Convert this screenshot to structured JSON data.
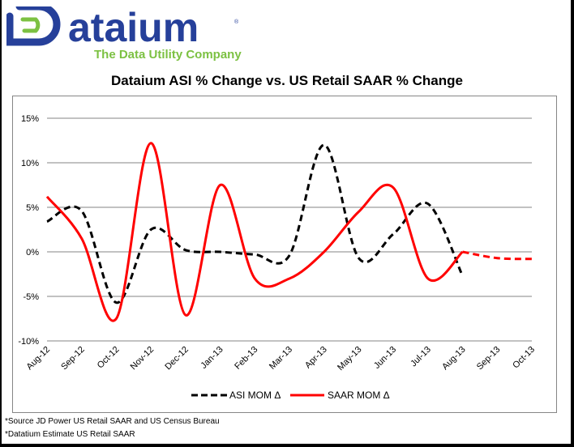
{
  "logo": {
    "brand": "ataium",
    "registered": "®",
    "tagline": "The Data Utility Company",
    "colors": {
      "blue": "#26409a",
      "green": "#7cc142"
    }
  },
  "footnotes": [
    "*Source JD Power US Retail SAAR and US Census Bureau",
    "*Datatium Estimate US Retail SAAR"
  ],
  "chart_data": {
    "type": "line",
    "title": "Dataium ASI % Change vs. US Retail SAAR % Change",
    "xlabel": "",
    "ylabel": "",
    "categories": [
      "Aug-12",
      "Sep-12",
      "Oct-12",
      "Nov-12",
      "Dec-12",
      "Jan-13",
      "Feb-13",
      "Mar-13",
      "Apr-13",
      "May-13",
      "Jun-13",
      "Jul-13",
      "Aug-13",
      "Sep-13",
      "Oct-13"
    ],
    "y_ticks": [
      "15%",
      "10%",
      "5%",
      "0%",
      "-5%",
      "-10%"
    ],
    "y_tick_values": [
      15,
      10,
      5,
      0,
      -5,
      -10
    ],
    "ylim": [
      -10,
      15
    ],
    "grid": true,
    "legend_position": "bottom",
    "series": [
      {
        "name": "ASI MOM Δ",
        "color": "#000000",
        "style": "dashed",
        "smooth": true,
        "values": [
          3.4,
          4.6,
          -5.7,
          2.5,
          0.2,
          0.0,
          -0.3,
          -0.4,
          12.0,
          -0.7,
          2.0,
          5.4,
          -2.7,
          null,
          null
        ]
      },
      {
        "name": "SAAR MOM Δ",
        "color": "#ff0000",
        "style": "solid",
        "smooth": true,
        "estimate_from_index": 12,
        "values": [
          6.2,
          1.5,
          -7.5,
          12.2,
          -7.1,
          7.5,
          -3.0,
          -3.0,
          0.0,
          4.5,
          7.2,
          -3.0,
          0.0,
          -0.7,
          -0.8
        ]
      }
    ]
  }
}
